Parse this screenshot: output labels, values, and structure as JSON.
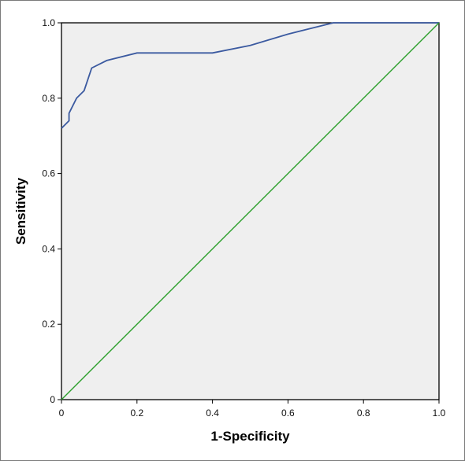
{
  "chart_data": {
    "type": "line",
    "title": "",
    "xlabel": "1-Specificity",
    "ylabel": "Sensitivity",
    "xlim": [
      0,
      1
    ],
    "ylim": [
      0,
      1
    ],
    "x_ticks": [
      "0",
      "0.2",
      "0.4",
      "0.6",
      "0.8",
      "1.0"
    ],
    "y_ticks": [
      "0",
      "0.2",
      "0.4",
      "0.6",
      "0.8",
      "1.0"
    ],
    "grid": false,
    "legend": "none",
    "plot_background": "#efefef",
    "series": [
      {
        "color": "#3b5aa0",
        "x": [
          0,
          0.02,
          0.02,
          0.025,
          0.04,
          0.06,
          0.08,
          0.12,
          0.2,
          0.3,
          0.4,
          0.5,
          0.6,
          0.72,
          1.0
        ],
        "y": [
          0.72,
          0.74,
          0.76,
          0.77,
          0.8,
          0.82,
          0.88,
          0.9,
          0.92,
          0.92,
          0.92,
          0.94,
          0.97,
          1.0,
          1.0
        ]
      },
      {
        "color": "#2ca02c",
        "x": [
          0,
          1
        ],
        "y": [
          0,
          1
        ]
      }
    ]
  }
}
